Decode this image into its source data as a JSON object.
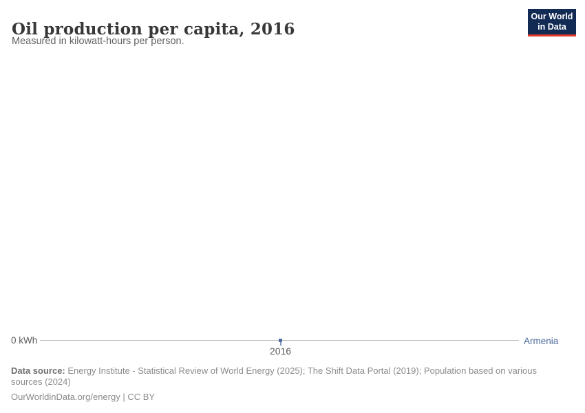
{
  "header": {
    "title": "Oil production per capita, 2016",
    "subtitle": "Measured in kilowatt-hours per person."
  },
  "logo": {
    "line1": "Our World",
    "line2": "in Data",
    "bg_color": "#122b54",
    "accent_color": "#dc3a2b"
  },
  "chart_data": {
    "type": "line",
    "title": "Oil production per capita, 2016",
    "subtitle": "Measured in kilowatt-hours per person.",
    "unit": "kilowatt-hours per person",
    "series": [
      {
        "name": "Armenia",
        "x": [
          2016
        ],
        "values": [
          0
        ]
      }
    ],
    "x_ticks": [
      "2016"
    ],
    "y_ticks": [
      "0 kWh"
    ],
    "ylim": [
      0,
      0
    ],
    "grid": false,
    "legend_position": "right-of-line",
    "accent_color": "#4C6A9C",
    "axis_line_color": "#bdbdbd"
  },
  "footer": {
    "datasource_label": "Data source:",
    "datasource_text": " Energy Institute - Statistical Review of World Energy (2025); The Shift Data Portal (2019); Population based on various sources (2024)",
    "license_line": "OurWorldinData.org/energy | CC BY"
  }
}
